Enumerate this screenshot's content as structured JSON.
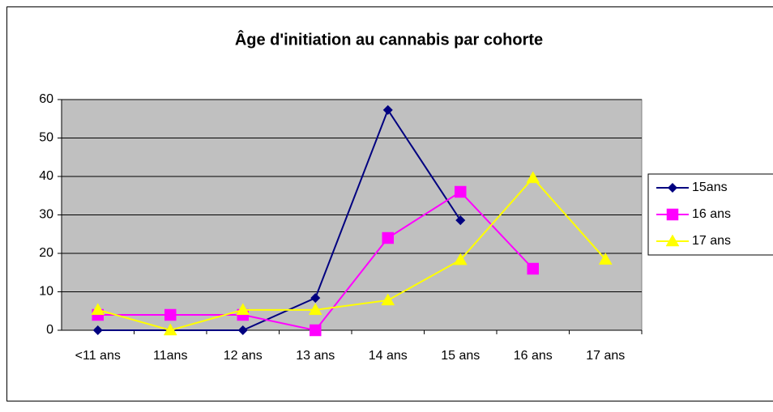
{
  "chart_data": {
    "type": "line",
    "title": "Âge d'initiation au cannabis par cohorte",
    "categories": [
      "<11 ans",
      "11ans",
      "12 ans",
      "13 ans",
      "14 ans",
      "15 ans",
      "16 ans",
      "17 ans"
    ],
    "series": [
      {
        "name": "15ans",
        "color": "#000080",
        "marker": "diamond",
        "values": [
          0,
          0,
          0,
          8.4,
          57.3,
          28.6,
          null,
          null
        ]
      },
      {
        "name": "16 ans",
        "color": "#FF00FF",
        "marker": "square",
        "values": [
          4,
          4,
          4,
          0,
          24,
          36,
          16,
          null
        ]
      },
      {
        "name": "17 ans",
        "color": "#FFFF00",
        "marker": "triangle",
        "values": [
          5.3,
          0,
          5.3,
          5.3,
          7.8,
          18.3,
          39.6,
          18.4
        ]
      }
    ],
    "ylim": [
      0,
      60
    ],
    "yticks": [
      0,
      10,
      20,
      30,
      40,
      50,
      60
    ],
    "grid": true,
    "legend": "right"
  }
}
